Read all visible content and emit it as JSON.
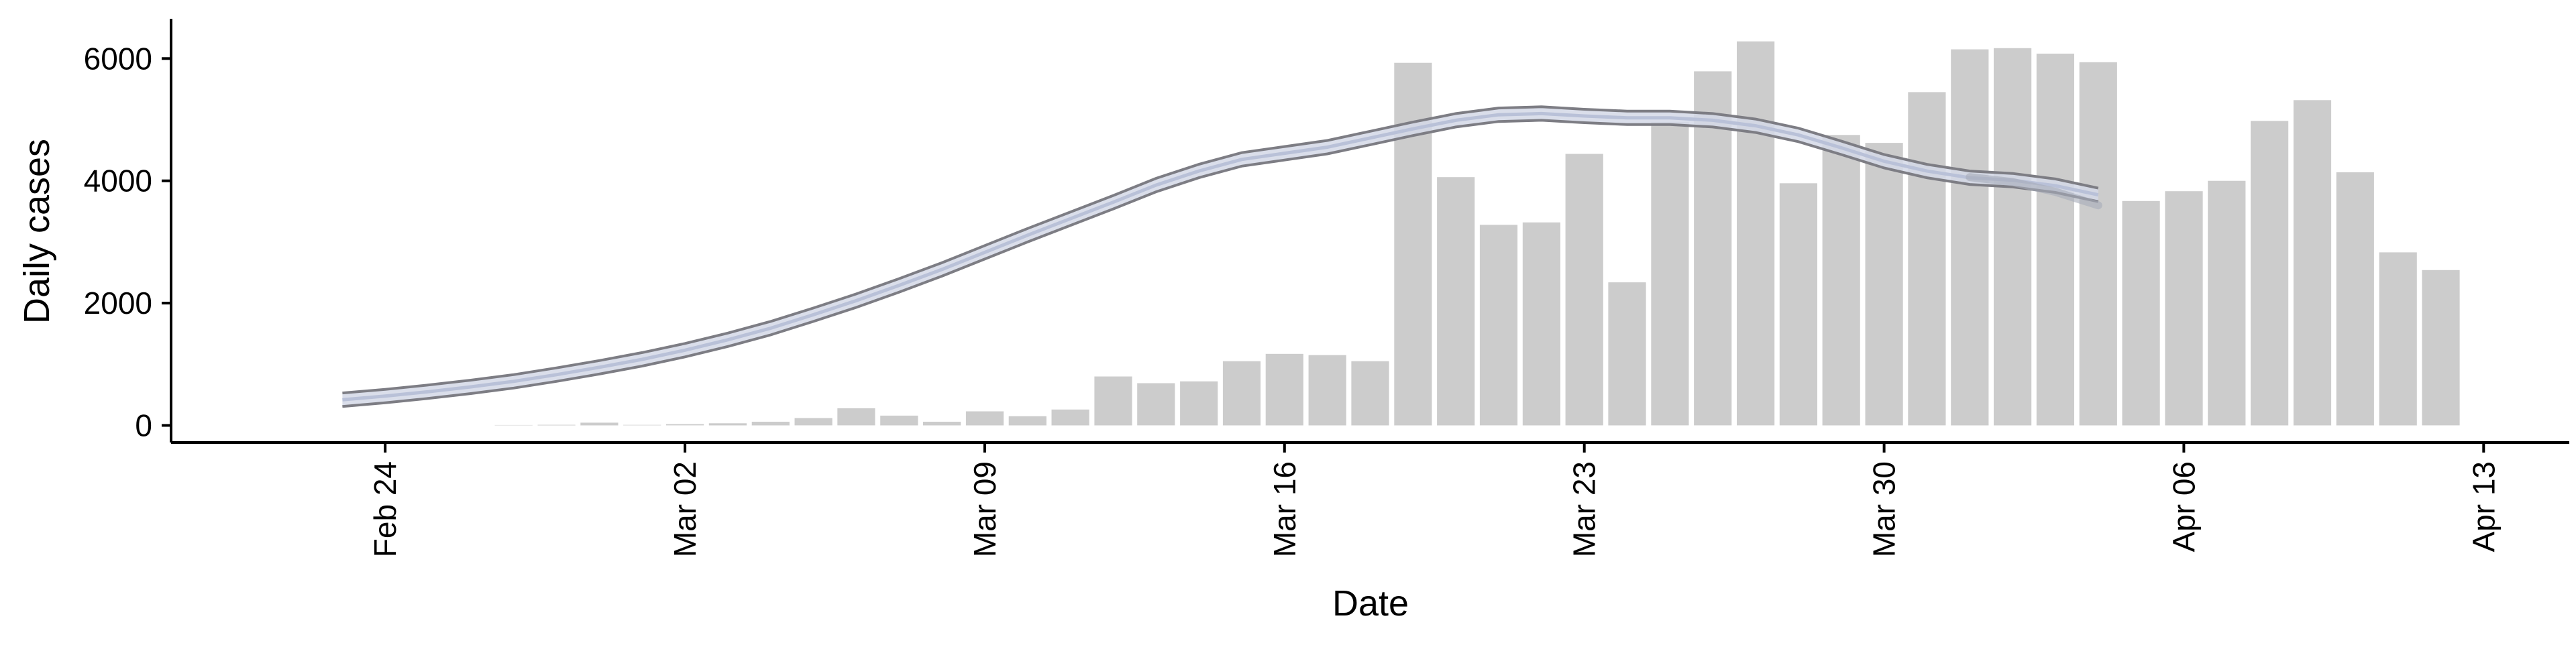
{
  "chart_data": {
    "type": "bar",
    "title": "",
    "xlabel": "Date",
    "ylabel": "Daily cases",
    "x_ticks": [
      "Feb 24",
      "Mar 02",
      "Mar 09",
      "Mar 16",
      "Mar 23",
      "Mar 30",
      "Apr 06",
      "Apr 13"
    ],
    "y_ticks": [
      "0",
      "2000",
      "4000",
      "6000"
    ],
    "xlim": [
      "2020-02-19",
      "2020-04-15"
    ],
    "ylim": [
      -280,
      6650
    ],
    "grid": false,
    "legend": "none",
    "bar_series": {
      "start_date": "2020-02-27",
      "values": [
        6,
        10,
        45,
        8,
        20,
        35,
        60,
        120,
        280,
        160,
        60,
        230,
        150,
        260,
        800,
        690,
        720,
        1050,
        1170,
        1150,
        1050,
        5930,
        4060,
        3280,
        3320,
        4440,
        2340,
        4960,
        5790,
        6280,
        3960,
        4750,
        4620,
        5450,
        6150,
        6170,
        6080,
        5940,
        3670,
        3830,
        4000,
        4980,
        5320,
        4140,
        2830,
        2540
      ]
    },
    "line_series": [
      {
        "dates": [
          "2020-02-23",
          "2020-02-24",
          "2020-02-25",
          "2020-02-26",
          "2020-02-27",
          "2020-02-28",
          "2020-02-29",
          "2020-03-01",
          "2020-03-02",
          "2020-03-03",
          "2020-03-04",
          "2020-03-05",
          "2020-03-06",
          "2020-03-07",
          "2020-03-08",
          "2020-03-09",
          "2020-03-10",
          "2020-03-11",
          "2020-03-12",
          "2020-03-13",
          "2020-03-14",
          "2020-03-15",
          "2020-03-16",
          "2020-03-17",
          "2020-03-18",
          "2020-03-19",
          "2020-03-20",
          "2020-03-21",
          "2020-03-22",
          "2020-03-23",
          "2020-03-24",
          "2020-03-25",
          "2020-03-26",
          "2020-03-27",
          "2020-03-28",
          "2020-03-29",
          "2020-03-30",
          "2020-03-31",
          "2020-04-01",
          "2020-04-02",
          "2020-04-03",
          "2020-04-04"
        ],
        "values": [
          420,
          480,
          550,
          630,
          720,
          830,
          950,
          1080,
          1230,
          1400,
          1590,
          1810,
          2040,
          2290,
          2550,
          2830,
          3110,
          3380,
          3650,
          3930,
          4160,
          4350,
          4450,
          4550,
          4700,
          4850,
          4990,
          5080,
          5100,
          5060,
          5030,
          5030,
          4990,
          4900,
          4750,
          4540,
          4320,
          4160,
          4050,
          4010,
          3920,
          3770
        ],
        "lower_offset": 110,
        "upper_offset": 110
      },
      {
        "dates": [
          "2020-04-01",
          "2020-04-02",
          "2020-04-03",
          "2020-04-04"
        ],
        "values": [
          4060,
          3980,
          3820,
          3600
        ]
      }
    ]
  }
}
